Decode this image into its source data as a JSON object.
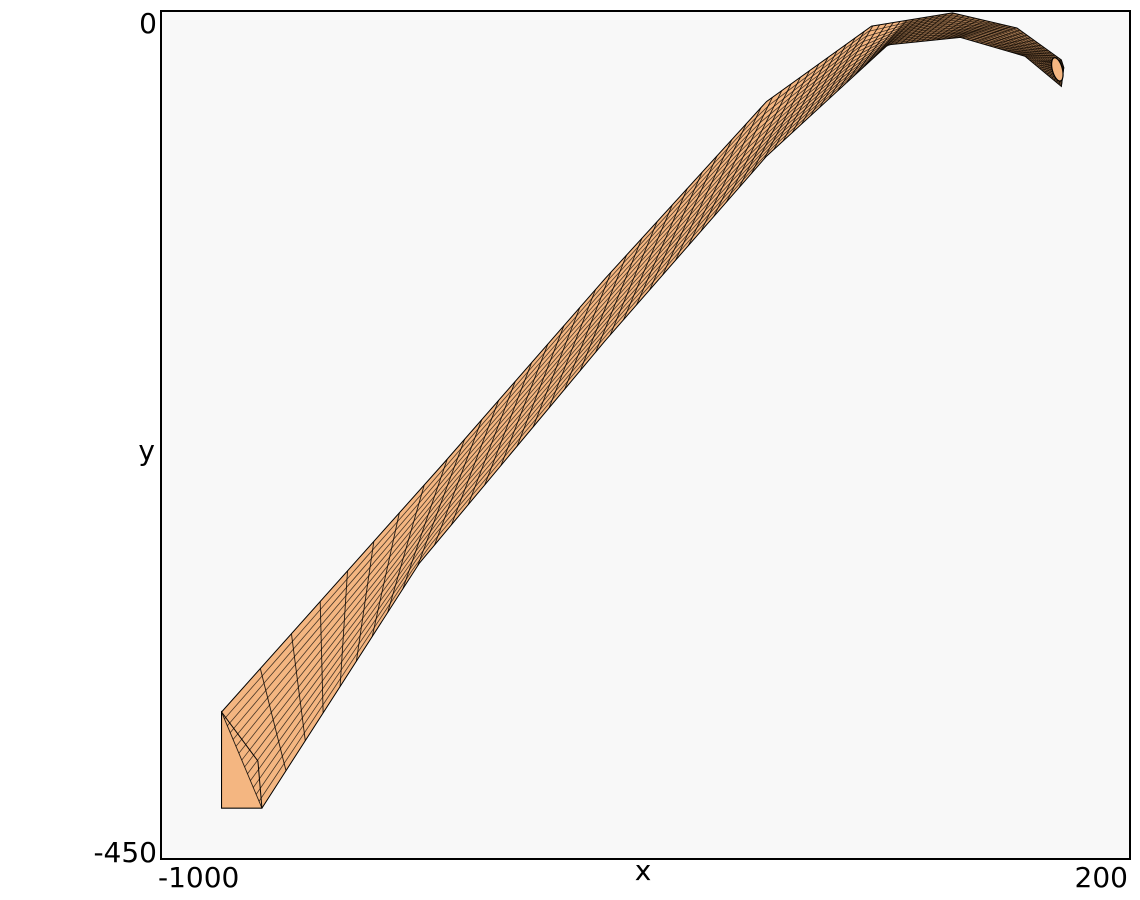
{
  "chart_data": {
    "type": "mesh-surface",
    "xlabel": "x",
    "ylabel": "y",
    "xlim": [
      -1000,
      200
    ],
    "ylim": [
      -450,
      0
    ],
    "x_ticks": [
      "-1000",
      "200"
    ],
    "y_ticks": [
      "0",
      "-450"
    ],
    "grid": false,
    "legend": "none",
    "colors": {
      "background": "#f8f8f8",
      "surface": "#f4b681",
      "mesh_lines": "#000000",
      "frame": "#000000"
    },
    "ribbon_outline": {
      "upper_edge": [
        {
          "x": -925,
          "y": -372
        },
        {
          "x": -650,
          "y": -240
        },
        {
          "x": -450,
          "y": -142
        },
        {
          "x": -250,
          "y": -48
        },
        {
          "x": -120,
          "y": -8
        },
        {
          "x": -20,
          "y": -1
        },
        {
          "x": 60,
          "y": -9
        },
        {
          "x": 115,
          "y": -26
        },
        {
          "x": 118,
          "y": -30
        }
      ],
      "lower_edge": [
        {
          "x": 115,
          "y": -40
        },
        {
          "x": 70,
          "y": -24
        },
        {
          "x": -10,
          "y": -14
        },
        {
          "x": -100,
          "y": -18
        },
        {
          "x": -250,
          "y": -77
        },
        {
          "x": -450,
          "y": -175
        },
        {
          "x": -680,
          "y": -293
        },
        {
          "x": -875,
          "y": -423
        }
      ],
      "base_corner": {
        "x": -925,
        "y": -423
      }
    },
    "tip_cap": {
      "x": 110,
      "y": -31
    }
  }
}
